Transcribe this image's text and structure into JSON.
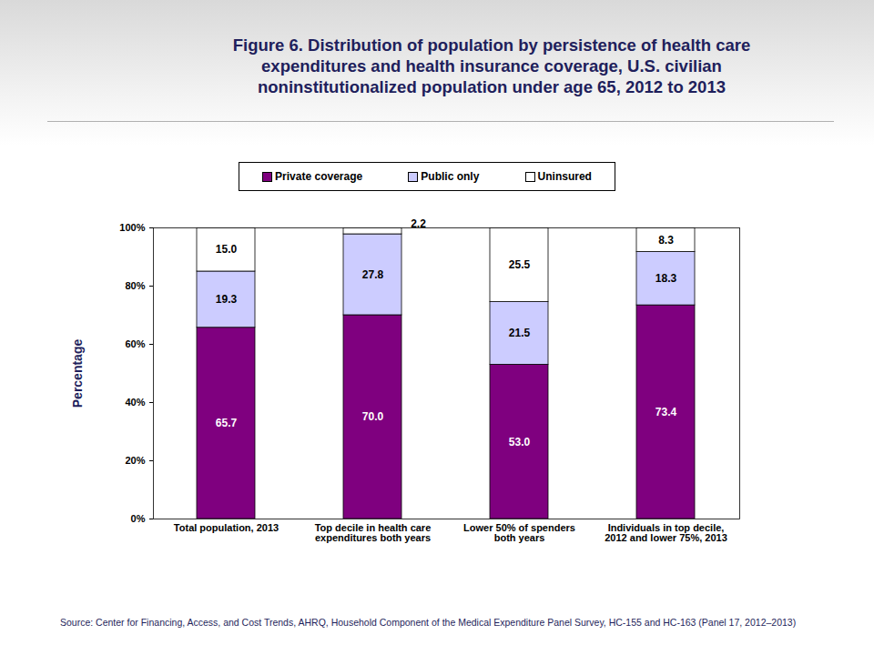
{
  "chart_data": {
    "type": "bar",
    "stacked": true,
    "title": "Figure 6. Distribution of population by persistence of health care expenditures and health insurance coverage, U.S. civilian noninstitutionalized population under age 65, 2012 to 2013",
    "y_label": "Percentage",
    "source": "Source: Center for Financing, Access, and Cost Trends, AHRQ, Household Component of the Medical Expenditure Panel Survey, HC-155 and HC-163 (Panel 17, 2012–2013)",
    "categories": [
      "Total population, 2013",
      "Top decile in health care expenditures both years",
      "Lower 50% of spenders both years",
      "Individuals in top decile, 2012 and lower 75%, 2013"
    ],
    "series": [
      {
        "name": "Private coverage",
        "color": "#7f007f",
        "values": [
          65.7,
          70.0,
          53.0,
          73.4
        ],
        "value_labels": [
          "65.7",
          "70.0",
          "53.0",
          "73.4"
        ]
      },
      {
        "name": "Public only",
        "color": "#ccccff",
        "values": [
          19.3,
          27.8,
          21.5,
          18.3
        ],
        "value_labels": [
          "19.3",
          "27.8",
          "21.5",
          "18.3"
        ]
      },
      {
        "name": "Uninsured",
        "color": "#ffffff",
        "values": [
          15.0,
          2.2,
          25.5,
          8.3
        ],
        "value_labels": [
          "15.0",
          "2.2",
          "25.5",
          "8.3"
        ]
      }
    ],
    "ylim": [
      0,
      100
    ],
    "yticks": [
      {
        "value": 0,
        "label": "0%"
      },
      {
        "value": 20,
        "label": "20%"
      },
      {
        "value": 40,
        "label": "40%"
      },
      {
        "value": 60,
        "label": "60%"
      },
      {
        "value": 80,
        "label": "80%"
      },
      {
        "value": 100,
        "label": "100%"
      }
    ],
    "grid": false,
    "legend": "top",
    "data_labels": true
  }
}
